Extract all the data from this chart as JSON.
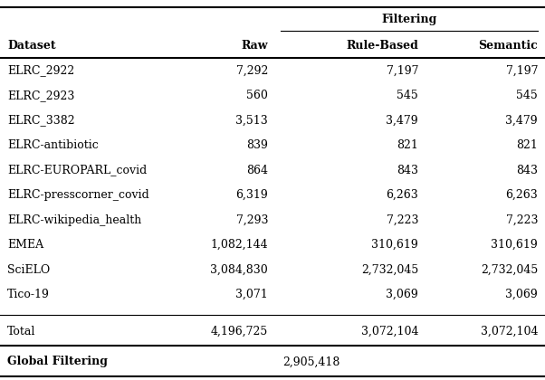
{
  "datasets": [
    "ELRC_2922",
    "ELRC_2923",
    "ELRC_3382",
    "ELRC-antibiotic",
    "ELRC-EUROPARL_covid",
    "ELRC-presscorner_covid",
    "ELRC-wikipedia_health",
    "EMEA",
    "SciELO",
    "Tico-19"
  ],
  "raw": [
    "7,292",
    "560",
    "3,513",
    "839",
    "864",
    "6,319",
    "7,293",
    "1,082,144",
    "3,084,830",
    "3,071"
  ],
  "rule_based": [
    "7,197",
    "545",
    "3,479",
    "821",
    "843",
    "6,263",
    "7,223",
    "310,619",
    "2,732,045",
    "3,069"
  ],
  "semantic": [
    "7,197",
    "545",
    "3,479",
    "821",
    "843",
    "6,263",
    "7,223",
    "310,619",
    "2,732,045",
    "3,069"
  ],
  "total_raw": "4,196,725",
  "total_rule": "3,072,104",
  "total_semantic": "3,072,104",
  "global_filtering": "2,905,418",
  "col_headers": [
    "Dataset",
    "Raw",
    "Rule-Based",
    "Semantic"
  ],
  "filtering_header": "Filtering",
  "bg_color": "#ffffff",
  "text_color": "#000000",
  "font_size": 9.0,
  "header_font_size": 9.0
}
